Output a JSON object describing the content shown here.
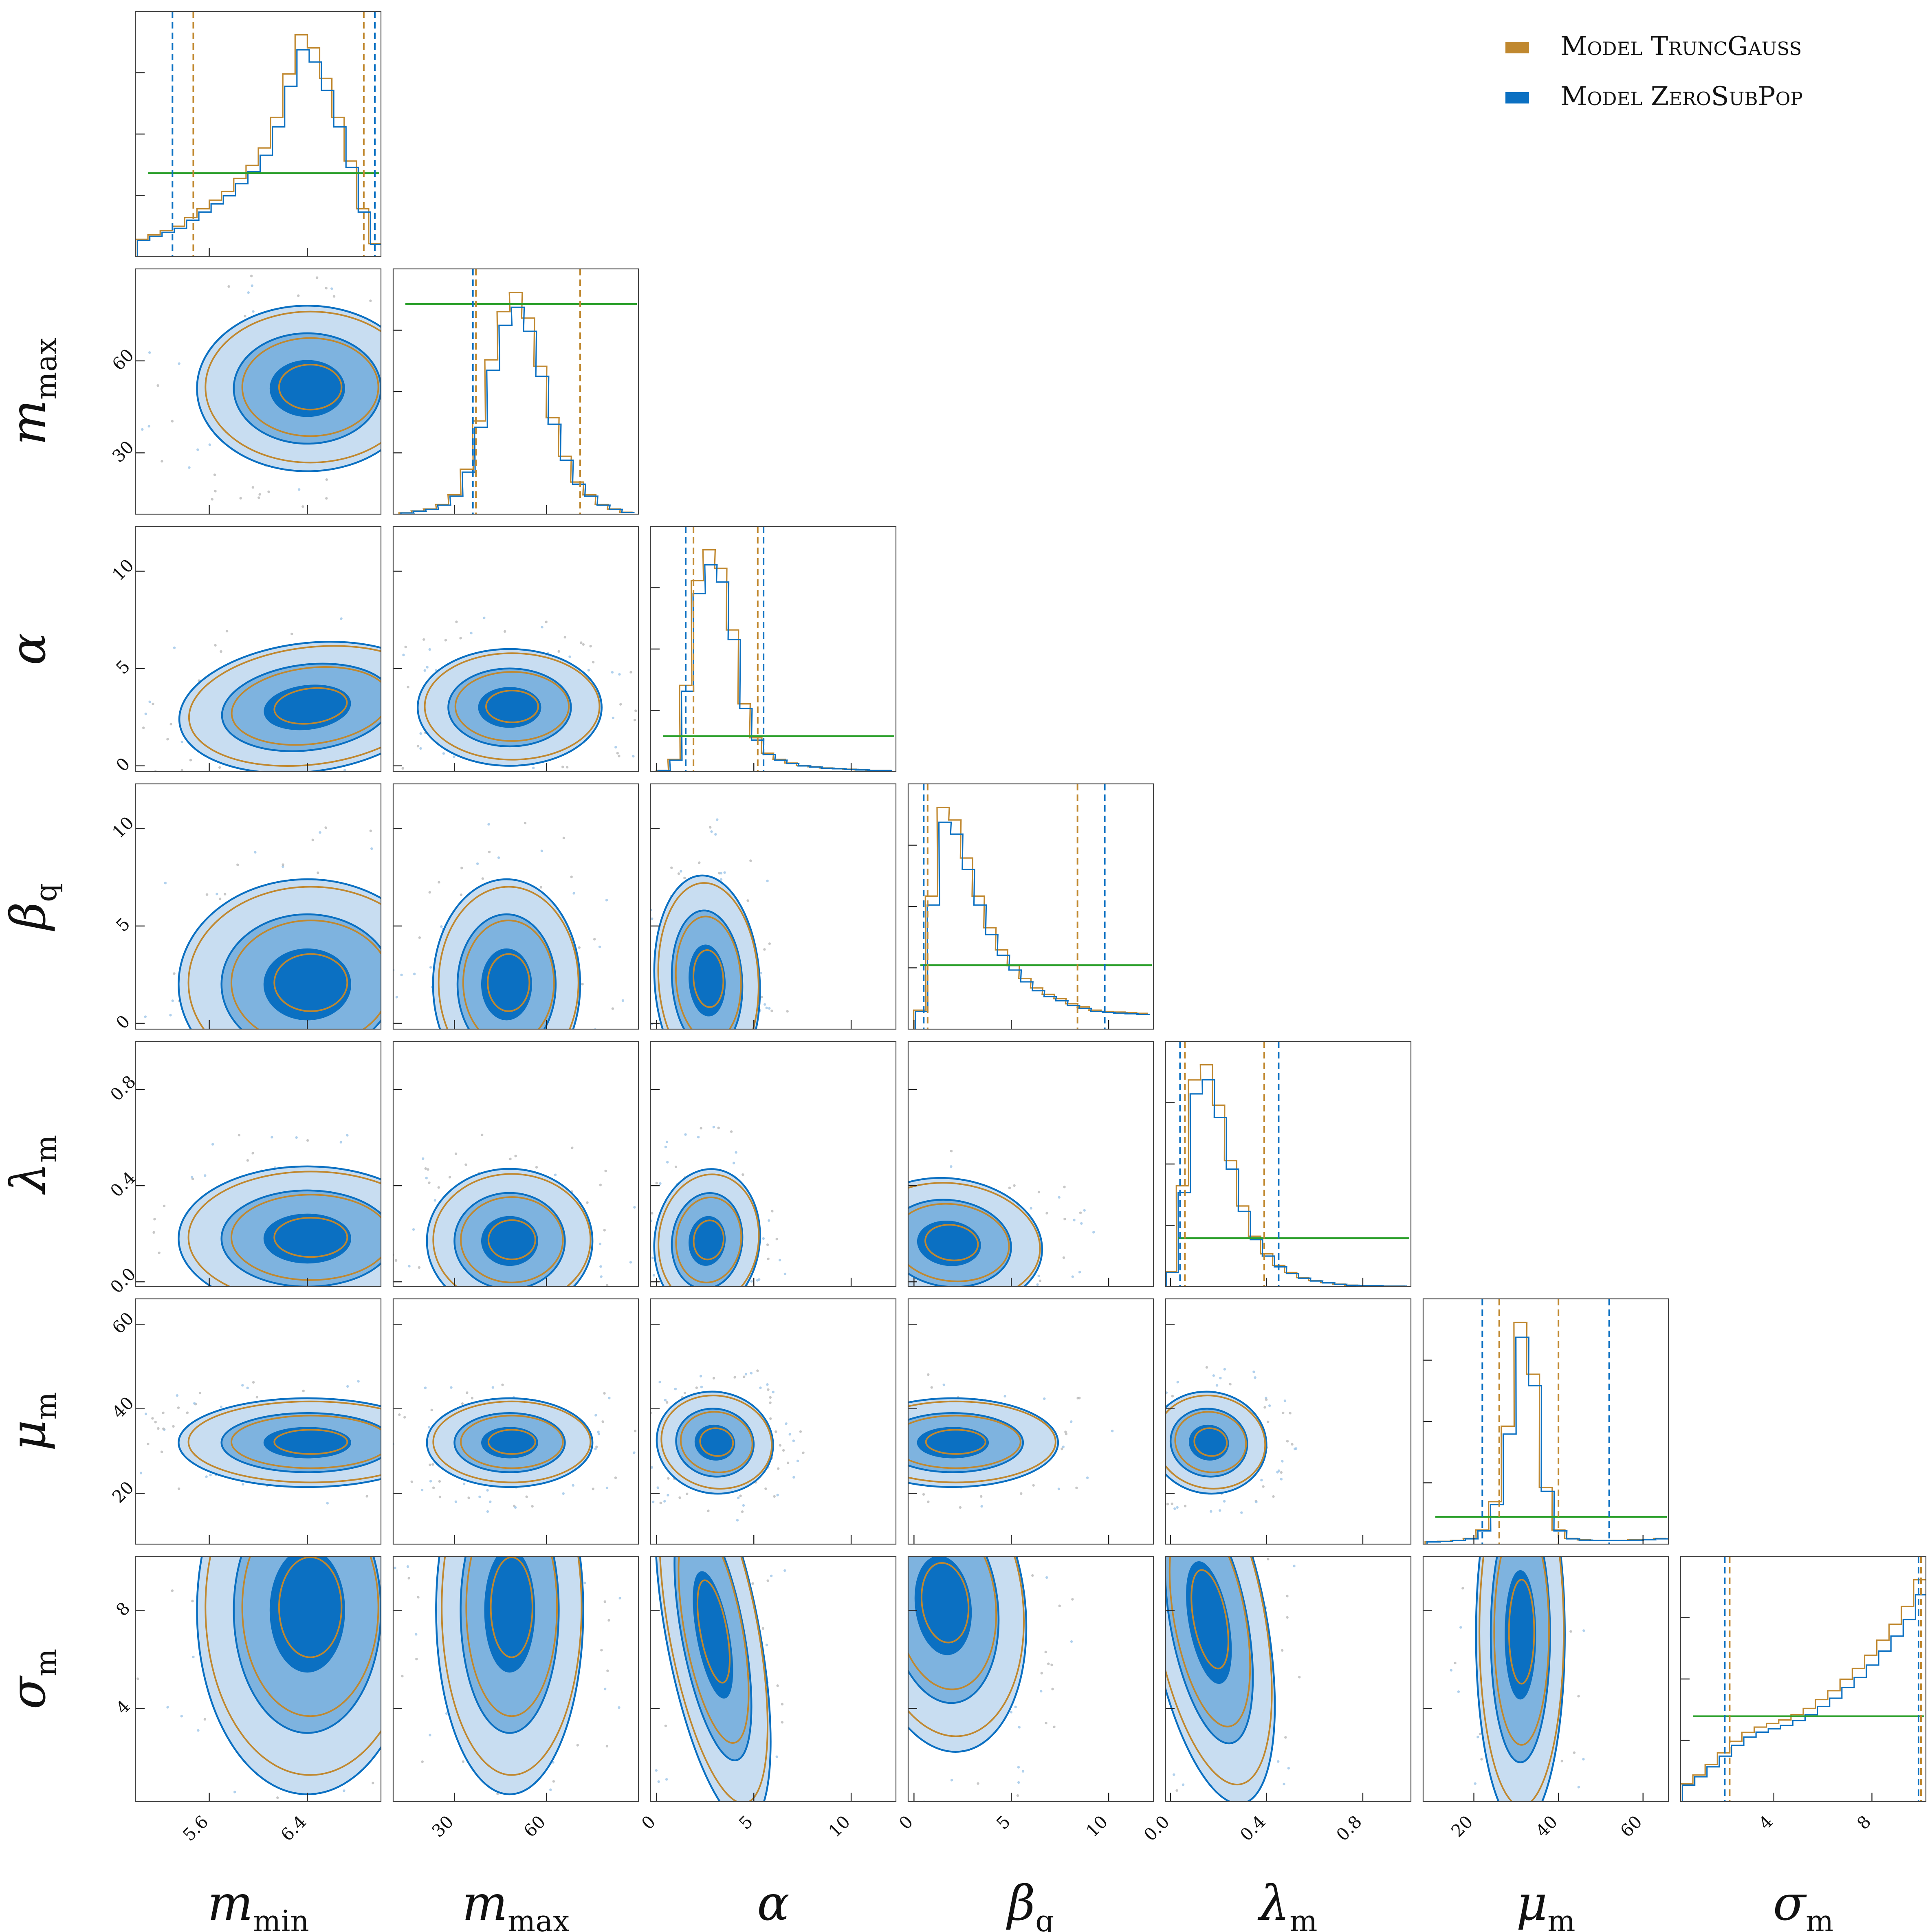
{
  "chart_data": {
    "type": "corner",
    "parameters": [
      {
        "key": "m_min",
        "label": "m",
        "sub": "min",
        "range": [
          5.0,
          7.0
        ],
        "ticks": [
          5.6,
          6.4
        ],
        "ticklabels": [
          "5.6",
          "6.4"
        ],
        "interval_a": [
          5.3,
          6.95
        ],
        "interval_b": [
          5.47,
          6.86
        ],
        "mode": 6.4
      },
      {
        "key": "m_max",
        "label": "m",
        "sub": "max",
        "range": [
          10,
          90
        ],
        "ticks": [
          30,
          60
        ],
        "ticklabels": [
          "30",
          "60"
        ],
        "interval_a": [
          36,
          71
        ],
        "interval_b": [
          37,
          71
        ],
        "mode": 51
      },
      {
        "key": "alpha",
        "label": "α",
        "sub": "",
        "range": [
          -0.3,
          12.3
        ],
        "ticks": [
          0,
          5,
          10
        ],
        "ticklabels": [
          "0",
          "5",
          "10"
        ],
        "interval_a": [
          1.5,
          5.5
        ],
        "interval_b": [
          1.9,
          5.2
        ],
        "mode": 3.0
      },
      {
        "key": "beta_q",
        "label": "β",
        "sub": "q",
        "range": [
          -0.3,
          12.3
        ],
        "ticks": [
          0,
          5,
          10
        ],
        "ticklabels": [
          "0",
          "5",
          "10"
        ],
        "interval_a": [
          0.5,
          9.8
        ],
        "interval_b": [
          0.7,
          8.4
        ],
        "mode": 1.8
      },
      {
        "key": "lambda_m",
        "label": "λ",
        "sub": "m",
        "range": [
          -0.02,
          1.0
        ],
        "ticks": [
          0.0,
          0.4,
          0.8
        ],
        "ticklabels": [
          "0.0",
          "0.4",
          "0.8"
        ],
        "interval_a": [
          0.04,
          0.45
        ],
        "interval_b": [
          0.06,
          0.39
        ],
        "mode": 0.18
      },
      {
        "key": "mu_m",
        "label": "μ",
        "sub": "m",
        "range": [
          8,
          66
        ],
        "ticks": [
          20,
          40,
          60
        ],
        "ticklabels": [
          "20",
          "40",
          "60"
        ],
        "interval_a": [
          22,
          52
        ],
        "interval_b": [
          26,
          40
        ],
        "mode": 32
      },
      {
        "key": "sigma_m",
        "label": "σ",
        "sub": "m",
        "range": [
          0.2,
          10.2
        ],
        "ticks": [
          4,
          8
        ],
        "ticklabels": [
          "4",
          "8"
        ],
        "interval_a": [
          2.0,
          9.9
        ],
        "interval_b": [
          2.2,
          10.0
        ],
        "mode": 9.8
      }
    ],
    "series": [
      {
        "name": "Model TruncGauss",
        "color": "#c0882f"
      },
      {
        "name": "Model ZeroSubPop",
        "color": "#0b70c2"
      }
    ],
    "prior_color": "#2ca02c",
    "histograms": [
      {
        "x": [
          5.05,
          5.15,
          5.25,
          5.35,
          5.45,
          5.55,
          5.65,
          5.75,
          5.85,
          5.95,
          6.05,
          6.15,
          6.25,
          6.35,
          6.45,
          6.55,
          6.65,
          6.75,
          6.85,
          6.95
        ],
        "density": [
          0.2,
          0.25,
          0.3,
          0.35,
          0.45,
          0.55,
          0.65,
          0.75,
          0.9,
          1.05,
          1.25,
          1.6,
          2.1,
          2.55,
          2.4,
          2.05,
          1.6,
          1.1,
          0.55,
          0.15
        ],
        "prior": 1.0
      },
      {
        "x": [
          14,
          18,
          22,
          26,
          30,
          34,
          38,
          42,
          46,
          50,
          54,
          58,
          62,
          66,
          70,
          74,
          78,
          82,
          86
        ],
        "density": [
          0.02,
          0.05,
          0.08,
          0.15,
          0.3,
          0.7,
          1.45,
          2.4,
          3.15,
          3.45,
          3.05,
          2.3,
          1.5,
          0.9,
          0.5,
          0.3,
          0.15,
          0.08,
          0.03
        ],
        "prior": 3.4
      },
      {
        "x": [
          0.3,
          0.9,
          1.5,
          2.1,
          2.7,
          3.3,
          3.9,
          4.5,
          5.1,
          5.7,
          6.3,
          6.9,
          7.5,
          8.1,
          8.7,
          9.3,
          9.9,
          10.5,
          11.1,
          11.7
        ],
        "density": [
          0.02,
          0.2,
          1.4,
          3.1,
          3.6,
          3.3,
          2.3,
          1.1,
          0.55,
          0.3,
          0.2,
          0.14,
          0.1,
          0.08,
          0.06,
          0.05,
          0.04,
          0.03,
          0.02,
          0.02
        ],
        "prior": 0.6
      },
      {
        "x": [
          0.3,
          0.9,
          1.5,
          2.1,
          2.7,
          3.3,
          3.9,
          4.5,
          5.1,
          5.7,
          6.3,
          6.9,
          7.5,
          8.1,
          8.7,
          9.3,
          9.9,
          10.5,
          11.1,
          11.7
        ],
        "density": [
          0.3,
          2.1,
          3.5,
          3.3,
          2.7,
          2.1,
          1.6,
          1.25,
          1.0,
          0.8,
          0.65,
          0.55,
          0.48,
          0.4,
          0.35,
          0.3,
          0.28,
          0.27,
          0.26,
          0.25
        ],
        "prior": 1.05
      },
      {
        "x": [
          0.0,
          0.05,
          0.1,
          0.15,
          0.2,
          0.25,
          0.3,
          0.35,
          0.4,
          0.45,
          0.5,
          0.55,
          0.6,
          0.65,
          0.7,
          0.75,
          0.8,
          0.85,
          0.9,
          0.95
        ],
        "density": [
          0.3,
          2.0,
          4.1,
          4.4,
          3.6,
          2.5,
          1.6,
          1.0,
          0.65,
          0.42,
          0.28,
          0.18,
          0.12,
          0.08,
          0.05,
          0.03,
          0.02,
          0.02,
          0.01,
          0.01
        ],
        "prior": 1.0
      },
      {
        "x": [
          10,
          13,
          16,
          19,
          22,
          25,
          28,
          31,
          34,
          37,
          40,
          43,
          46,
          49,
          52,
          55,
          58,
          61,
          64
        ],
        "density": [
          0.05,
          0.06,
          0.08,
          0.12,
          0.3,
          0.9,
          2.5,
          4.7,
          3.6,
          1.2,
          0.3,
          0.12,
          0.09,
          0.08,
          0.08,
          0.08,
          0.09,
          0.1,
          0.12
        ],
        "prior": 0.6
      },
      {
        "x": [
          0.45,
          0.95,
          1.45,
          1.95,
          2.45,
          2.95,
          3.45,
          3.95,
          4.45,
          4.95,
          5.45,
          5.95,
          6.45,
          6.95,
          7.45,
          7.95,
          8.45,
          8.95,
          9.45,
          9.95
        ],
        "density": [
          0.2,
          0.3,
          0.42,
          0.55,
          0.68,
          0.78,
          0.84,
          0.88,
          0.92,
          0.98,
          1.05,
          1.15,
          1.25,
          1.38,
          1.5,
          1.65,
          1.82,
          2.0,
          2.2,
          2.5
        ],
        "prior": 1.0
      }
    ],
    "pairs": [
      {
        "i": 1,
        "j": 0,
        "center": [
          6.4,
          51
        ],
        "spread": [
          0.3,
          9
        ],
        "rho": 0.0
      },
      {
        "i": 2,
        "j": 0,
        "center": [
          6.4,
          3.0
        ],
        "spread": [
          0.35,
          1.1
        ],
        "rho": 0.2
      },
      {
        "i": 2,
        "j": 1,
        "center": [
          48,
          3.0
        ],
        "spread": [
          10,
          1.0
        ],
        "rho": 0.0
      },
      {
        "i": 3,
        "j": 0,
        "center": [
          6.4,
          2.0
        ],
        "spread": [
          0.35,
          1.8
        ],
        "rho": 0.0
      },
      {
        "i": 3,
        "j": 1,
        "center": [
          47,
          2.0
        ],
        "spread": [
          8,
          1.8
        ],
        "rho": 0.0
      },
      {
        "i": 3,
        "j": 2,
        "center": [
          2.6,
          2.2
        ],
        "spread": [
          0.9,
          1.8
        ],
        "rho": 0.1
      },
      {
        "i": 4,
        "j": 0,
        "center": [
          6.4,
          0.18
        ],
        "spread": [
          0.35,
          0.1
        ],
        "rho": 0.0
      },
      {
        "i": 4,
        "j": 1,
        "center": [
          48,
          0.17
        ],
        "spread": [
          9,
          0.1
        ],
        "rho": 0.0
      },
      {
        "i": 4,
        "j": 2,
        "center": [
          2.6,
          0.17
        ],
        "spread": [
          0.9,
          0.1
        ],
        "rho": -0.2
      },
      {
        "i": 4,
        "j": 3,
        "center": [
          1.8,
          0.16
        ],
        "spread": [
          1.6,
          0.09
        ],
        "rho": -0.2
      },
      {
        "i": 5,
        "j": 0,
        "center": [
          6.4,
          32
        ],
        "spread": [
          0.35,
          3.5
        ],
        "rho": 0.0
      },
      {
        "i": 5,
        "j": 1,
        "center": [
          48,
          32
        ],
        "spread": [
          9,
          3.5
        ],
        "rho": 0.0
      },
      {
        "i": 5,
        "j": 2,
        "center": [
          3.0,
          32
        ],
        "spread": [
          1.0,
          4.0
        ],
        "rho": -0.3
      },
      {
        "i": 5,
        "j": 3,
        "center": [
          2.0,
          32
        ],
        "spread": [
          1.8,
          3.5
        ],
        "rho": 0.0
      },
      {
        "i": 5,
        "j": 4,
        "center": [
          0.16,
          32
        ],
        "spread": [
          0.08,
          4.0
        ],
        "rho": -0.3
      },
      {
        "i": 6,
        "j": 0,
        "center": [
          6.4,
          8.0
        ],
        "spread": [
          0.3,
          2.5
        ],
        "rho": 0.0
      },
      {
        "i": 6,
        "j": 1,
        "center": [
          48,
          8.0
        ],
        "spread": [
          8,
          2.5
        ],
        "rho": 0.0
      },
      {
        "i": 6,
        "j": 2,
        "center": [
          2.9,
          7.0
        ],
        "spread": [
          0.8,
          2.6
        ],
        "rho": 0.3
      },
      {
        "i": 6,
        "j": 3,
        "center": [
          1.5,
          8.2
        ],
        "spread": [
          1.4,
          2.0
        ],
        "rho": 0.2
      },
      {
        "i": 6,
        "j": 4,
        "center": [
          0.16,
          7.5
        ],
        "spread": [
          0.08,
          2.5
        ],
        "rho": 0.3
      },
      {
        "i": 6,
        "j": 5,
        "center": [
          31,
          7.0
        ],
        "spread": [
          3.5,
          2.6
        ],
        "rho": 0.0
      }
    ],
    "legend": {
      "placement": "top-right"
    }
  }
}
